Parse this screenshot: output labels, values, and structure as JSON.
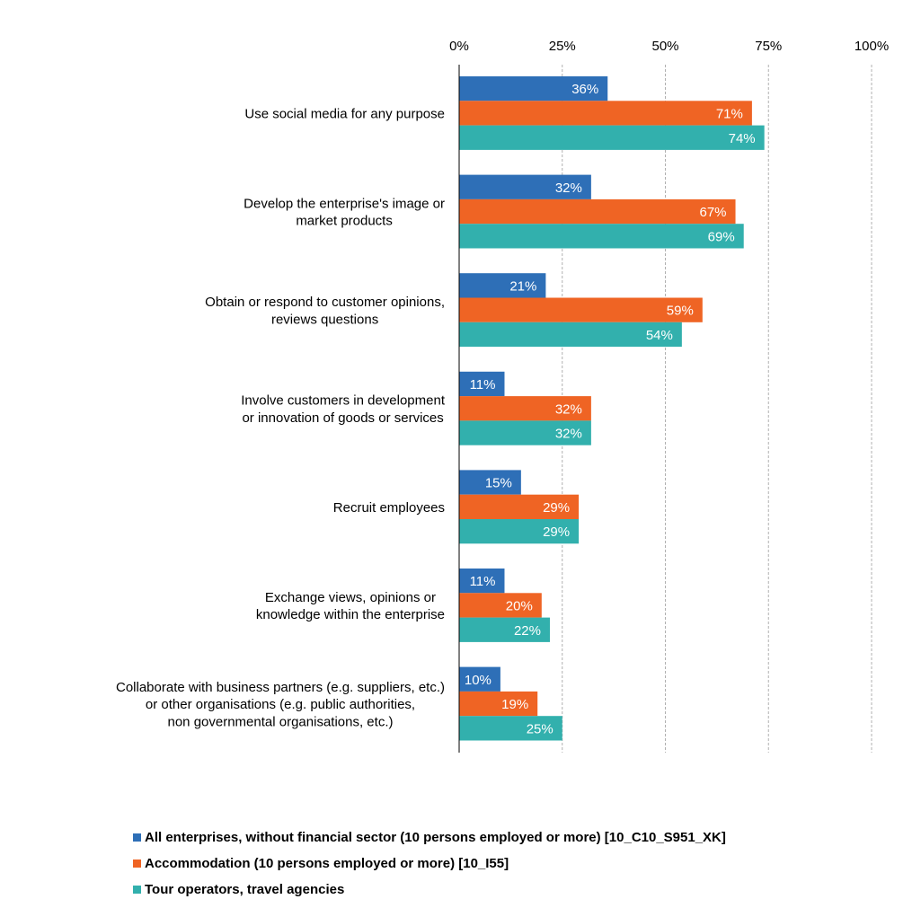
{
  "chart_data": {
    "type": "bar",
    "orientation": "horizontal",
    "categories": [
      [
        "Use social media for any purpose"
      ],
      [
        "Develop the enterprise's image or",
        "market products"
      ],
      [
        "Obtain or respond to customer opinions,",
        "reviews questions"
      ],
      [
        "Involve customers in development",
        "or innovation of goods or services"
      ],
      [
        "Recruit employees"
      ],
      [
        "Exchange views, opinions or",
        "knowledge within the enterprise"
      ],
      [
        "Collaborate with business partners (e.g. suppliers, etc.)",
        "or other organisations (e.g. public authorities,",
        "non governmental organisations, etc.)"
      ]
    ],
    "series": [
      {
        "name": "All enterprises, without financial sector (10 persons employed or more) [10_C10_S951_XK]",
        "color": "#2e6fb7",
        "values": [
          36,
          32,
          21,
          11,
          15,
          11,
          10
        ]
      },
      {
        "name": "Accommodation (10 persons employed or more) [10_I55]",
        "color": "#ef6424",
        "values": [
          71,
          67,
          59,
          32,
          29,
          20,
          19
        ]
      },
      {
        "name": "Tour operators, travel agencies",
        "color": "#32b0ad",
        "values": [
          74,
          69,
          54,
          32,
          29,
          22,
          25
        ]
      }
    ],
    "xlim": [
      0,
      100
    ],
    "xticks": [
      0,
      25,
      50,
      75,
      100
    ],
    "tick_suffix": "%",
    "value_suffix": "%",
    "xaxis_position": "top",
    "grid": "vertical dashed",
    "legend_position": "bottom-left",
    "title": "",
    "xlabel": "",
    "ylabel": ""
  }
}
